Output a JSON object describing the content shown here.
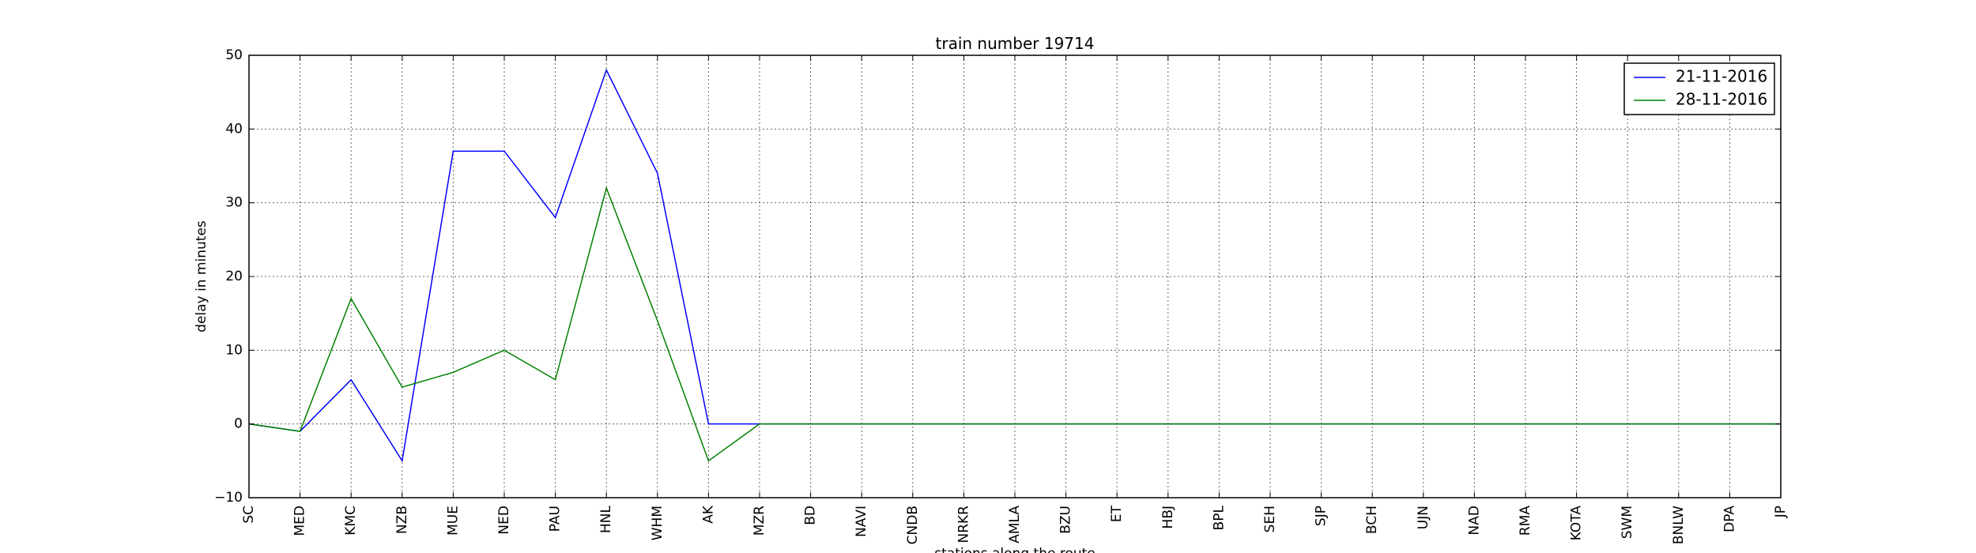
{
  "chart_data": {
    "type": "line",
    "title": "train number 19714",
    "xlabel": "stations along the route",
    "ylabel": "delay in minutes",
    "categories": [
      "SC",
      "MED",
      "KMC",
      "NZB",
      "MUE",
      "NED",
      "PAU",
      "HNL",
      "WHM",
      "AK",
      "MZR",
      "BD",
      "NAVI",
      "CNDB",
      "NRKR",
      "AMLA",
      "BZU",
      "ET",
      "HBJ",
      "BPL",
      "SEH",
      "SJP",
      "BCH",
      "UJN",
      "NAD",
      "RMA",
      "KOTA",
      "SWM",
      "BNLW",
      "DPA",
      "JP"
    ],
    "ylim": [
      -10,
      50
    ],
    "yticks": [
      -10,
      0,
      10,
      20,
      30,
      40,
      50
    ],
    "grid": true,
    "legend_position": "top-right",
    "series": [
      {
        "name": "21-11-2016",
        "color": "#0000ff",
        "values": [
          0,
          -1,
          6,
          -5,
          37,
          37,
          28,
          48,
          34,
          0,
          0,
          0,
          0,
          0,
          0,
          0,
          0,
          0,
          0,
          0,
          0,
          0,
          0,
          0,
          0,
          0,
          0,
          0,
          0,
          0,
          0
        ]
      },
      {
        "name": "28-11-2016",
        "color": "#008000",
        "values": [
          0,
          -1,
          17,
          5,
          7,
          10,
          6,
          32,
          14,
          -5,
          0,
          0,
          0,
          0,
          0,
          0,
          0,
          0,
          0,
          0,
          0,
          0,
          0,
          0,
          0,
          0,
          0,
          0,
          0,
          0,
          0
        ]
      }
    ]
  }
}
